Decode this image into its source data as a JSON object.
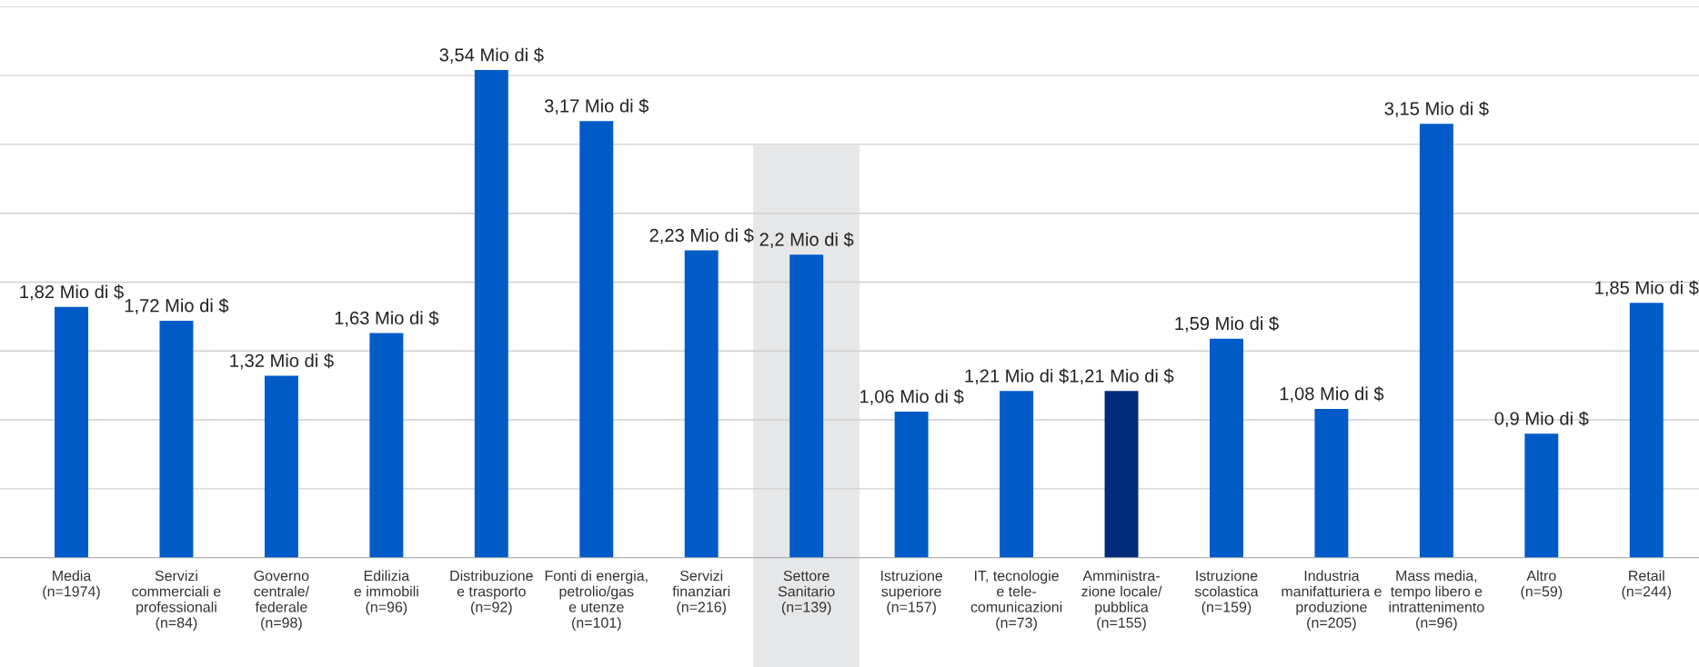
{
  "chart_data": {
    "type": "bar",
    "categories": [
      "Media\n(n=1974)",
      "Servizi\ncommerciali e\nprofessionali\n(n=84)",
      "Governo\ncentrale/\nfederale\n(n=98)",
      "Edilizia\ne immobili\n(n=96)",
      "Distribuzione\ne trasporto\n(n=92)",
      "Fonti di energia,\npetrolio/gas\ne utenze\n(n=101)",
      "Servizi\nfinanziari\n(n=216)",
      "Settore\nSanitario\n(n=139)",
      "Istruzione\nsuperiore\n(n=157)",
      "IT, tecnologie\ne tele-\ncomunicazioni\n(n=73)",
      "Amministra-\nzione locale/\npubblica\n(n=155)",
      "Istruzione\nscolastica\n(n=159)",
      "Industria\nmanifatturiera e\nproduzione\n(n=205)",
      "Mass media,\ntempo libero e\nintrattenimento\n(n=96)",
      "Altro\n(n=59)",
      "Retail\n(n=244)"
    ],
    "values": [
      1.82,
      1.72,
      1.32,
      1.63,
      3.54,
      3.17,
      2.23,
      2.2,
      1.06,
      1.21,
      1.21,
      1.59,
      1.08,
      3.15,
      0.9,
      1.85
    ],
    "value_labels": [
      "1,82 Mio di $",
      "1,72 Mio di $",
      "1,32 Mio di $",
      "1,63 Mio di $",
      "3,54 Mio di $",
      "3,17 Mio di $",
      "2,23 Mio di $",
      "2,2 Mio di $",
      "1,06 Mio di $",
      "1,21 Mio di $",
      "1,21 Mio di $",
      "1,59 Mio di $",
      "1,08 Mio di $",
      "3,15 Mio di $",
      "0,9 Mio di $",
      "1,85 Mio di $"
    ],
    "colors": [
      "#005bc8",
      "#005bc8",
      "#005bc8",
      "#005bc8",
      "#005bc8",
      "#005bc8",
      "#005bc8",
      "#005bc8",
      "#005bc8",
      "#005bc8",
      "#002b7a",
      "#005bc8",
      "#005bc8",
      "#005bc8",
      "#005bc8",
      "#005bc8"
    ],
    "ylim": [
      0,
      4
    ],
    "yticks": [
      {
        "value": 0,
        "label": null
      },
      {
        "value": 0.5,
        "label": null
      },
      {
        "value": 1,
        "label": null
      },
      {
        "value": 1.5,
        "label": null
      },
      {
        "value": 2,
        "label": null
      },
      {
        "value": 2.5,
        "label": null
      },
      {
        "value": 3,
        "label": null
      },
      {
        "value": 3.5,
        "label": null
      },
      {
        "value": 4,
        "label": null
      }
    ],
    "tick_labels": "x",
    "grid": "y",
    "bands": [
      {
        "axis": "x",
        "from": "Settore\nSanitario\n(n=139)",
        "to": "Settore\nSanitario\n(n=139)",
        "color": "#e6e7e9"
      }
    ]
  }
}
